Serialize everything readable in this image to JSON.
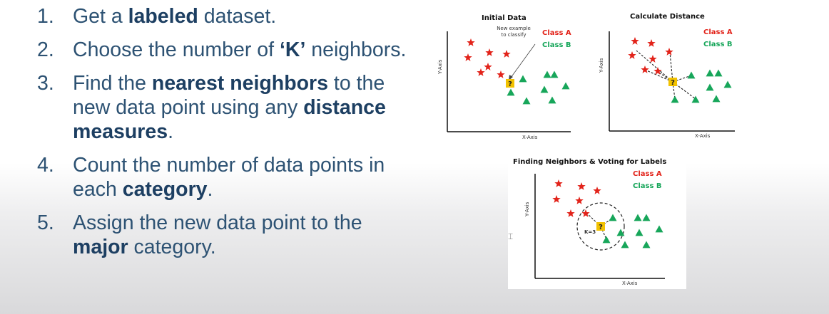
{
  "steps": [
    {
      "num": "1.",
      "parts": [
        {
          "t": "Get a "
        },
        {
          "t": "labeled",
          "b": true
        },
        {
          "t": " dataset."
        }
      ]
    },
    {
      "num": "2.",
      "parts": [
        {
          "t": "Choose the number of "
        },
        {
          "t": "‘K’",
          "b": true
        },
        {
          "t": " neighbors."
        }
      ]
    },
    {
      "num": "3.",
      "parts": [
        {
          "t": "Find the "
        },
        {
          "t": "nearest neighbors",
          "b": true
        },
        {
          "t": " to the new data point using any "
        },
        {
          "t": "distance measures",
          "b": true
        },
        {
          "t": "."
        }
      ]
    },
    {
      "num": "4.",
      "parts": [
        {
          "t": "Count the number of data points in each "
        },
        {
          "t": "category",
          "b": true
        },
        {
          "t": "."
        }
      ]
    },
    {
      "num": "5.",
      "parts": [
        {
          "t": "Assign the new data point to the "
        },
        {
          "t": "major",
          "b": true
        },
        {
          "t": " category."
        }
      ]
    }
  ],
  "diagrams": {
    "initial": {
      "title": "Initial Data",
      "class_a": "Class A",
      "class_b": "Class B",
      "x_axis": "X-Axis",
      "y_axis": "Y-Axis",
      "note_line1": "New example",
      "note_line2": "to classify",
      "query": "?"
    },
    "distance": {
      "title": "Calculate Distance",
      "class_a": "Class A",
      "class_b": "Class B",
      "x_axis": "X-Axis",
      "y_axis": "Y-Axis",
      "query": "?"
    },
    "voting": {
      "title": "Finding Neighbors & Voting for Labels",
      "class_a": "Class A",
      "class_b": "Class B",
      "x_axis": "X-Axis",
      "y_axis": "Y-Axis",
      "k_label": "K=3",
      "query": "?"
    }
  },
  "colors": {
    "class_a": "#e2231a",
    "class_b": "#17a65a",
    "query": "#f2c200",
    "text": "#2d5273",
    "bold": "#1d3f62"
  },
  "icons": {
    "class_a": "star-icon",
    "class_b": "triangle-icon",
    "query": "question-square-icon",
    "cursor": "text-cursor-icon"
  }
}
